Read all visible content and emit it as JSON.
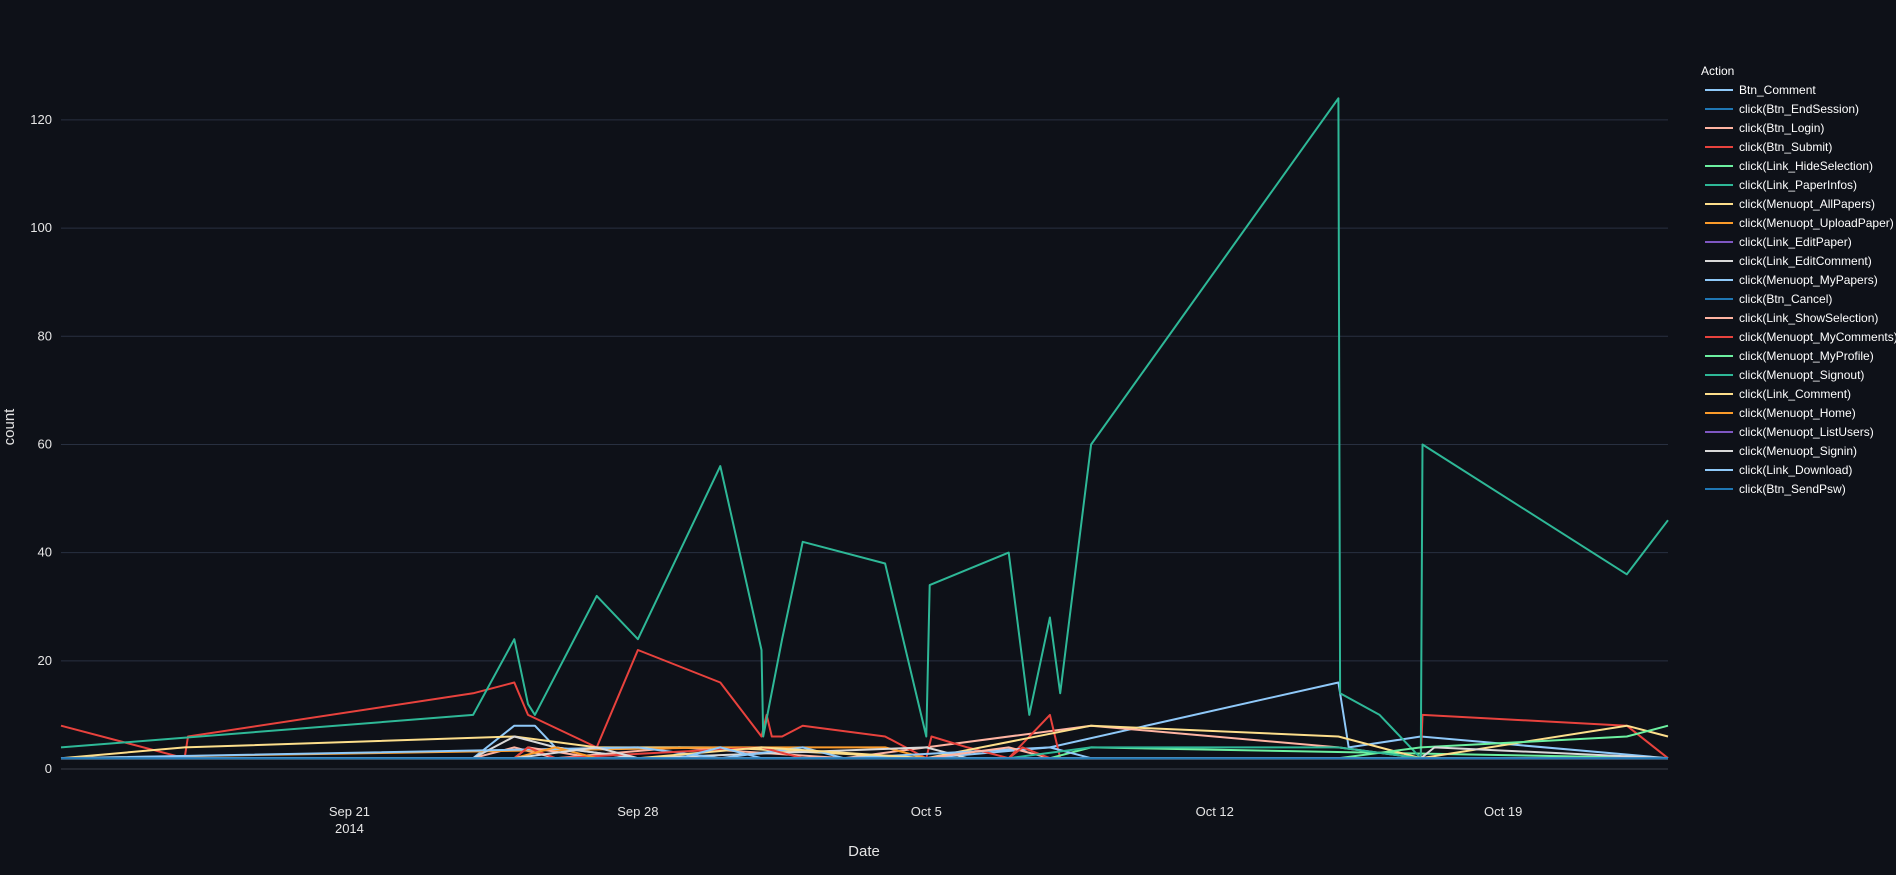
{
  "chart_data": {
    "type": "line",
    "xlabel": "Date",
    "ylabel": "count",
    "ylim": [
      0,
      132
    ],
    "xlim": [
      "2014-09-14",
      "2014-10-23"
    ],
    "grid": true,
    "legend": {
      "title": "Action",
      "placement": "right"
    },
    "x_ticks": [
      {
        "date": "2014-09-21",
        "label": "Sep 21",
        "sublabel": "2014"
      },
      {
        "date": "2014-09-28",
        "label": "Sep 28",
        "sublabel": ""
      },
      {
        "date": "2014-10-05",
        "label": "Oct 5",
        "sublabel": ""
      },
      {
        "date": "2014-10-12",
        "label": "Oct 12",
        "sublabel": ""
      },
      {
        "date": "2014-10-19",
        "label": "Oct 19",
        "sublabel": ""
      }
    ],
    "y_ticks": [
      0,
      20,
      40,
      60,
      80,
      100,
      120
    ],
    "series": [
      {
        "name": "Btn_Comment",
        "color": "#8fc9f9",
        "points": [
          [
            "2014-09-14",
            2
          ],
          [
            "2014-09-24",
            2
          ],
          [
            "2014-09-25",
            8
          ],
          [
            "2014-09-25T12:00",
            8
          ],
          [
            "2014-09-26",
            4
          ],
          [
            "2014-09-28",
            2
          ],
          [
            "2014-10-05",
            2
          ],
          [
            "2014-10-08",
            4
          ],
          [
            "2014-10-15",
            16
          ],
          [
            "2014-10-15T06:00",
            4
          ],
          [
            "2014-10-17",
            6
          ],
          [
            "2014-10-23",
            2
          ]
        ]
      },
      {
        "name": "click(Btn_EndSession)",
        "color": "#1f77b4",
        "points": [
          [
            "2014-09-14",
            2
          ],
          [
            "2014-10-23",
            2
          ]
        ]
      },
      {
        "name": "click(Btn_Login)",
        "color": "#ffb4a2",
        "points": [
          [
            "2014-09-14",
            2
          ],
          [
            "2014-09-24",
            2
          ],
          [
            "2014-09-25",
            4
          ],
          [
            "2014-09-26",
            2
          ],
          [
            "2014-09-29",
            4
          ],
          [
            "2014-10-03",
            2
          ],
          [
            "2014-10-09",
            8
          ],
          [
            "2014-10-15",
            4
          ],
          [
            "2014-10-17",
            2
          ],
          [
            "2014-10-23",
            2
          ]
        ]
      },
      {
        "name": "click(Btn_Submit)",
        "color": "#e8423d",
        "points": [
          [
            "2014-09-14",
            8
          ],
          [
            "2014-09-17",
            2
          ],
          [
            "2014-09-17T02:00",
            6
          ],
          [
            "2014-09-24",
            14
          ],
          [
            "2014-09-25",
            16
          ],
          [
            "2014-09-25T08:00",
            10
          ],
          [
            "2014-09-27",
            4
          ],
          [
            "2014-09-28",
            22
          ],
          [
            "2014-09-30",
            16
          ],
          [
            "2014-10-01",
            6
          ],
          [
            "2014-10-01T03:00",
            10
          ],
          [
            "2014-10-01T06:00",
            6
          ],
          [
            "2014-10-01T12:00",
            6
          ],
          [
            "2014-10-02",
            8
          ],
          [
            "2014-10-04",
            6
          ],
          [
            "2014-10-05",
            2
          ],
          [
            "2014-10-05T03:00",
            6
          ],
          [
            "2014-10-06",
            4
          ],
          [
            "2014-10-07",
            2
          ],
          [
            "2014-10-08",
            10
          ],
          [
            "2014-10-08T06:00",
            2
          ],
          [
            "2014-10-17",
            2
          ],
          [
            "2014-10-17T01:00",
            10
          ],
          [
            "2014-10-22",
            8
          ],
          [
            "2014-10-23",
            2
          ]
        ]
      },
      {
        "name": "click(Link_HideSelection)",
        "color": "#6cf0a0",
        "points": [
          [
            "2014-09-14",
            2
          ],
          [
            "2014-10-08",
            2
          ],
          [
            "2014-10-09",
            4
          ],
          [
            "2014-10-23",
            2
          ]
        ]
      },
      {
        "name": "click(Link_PaperInfos)",
        "color": "#2eb897",
        "points": [
          [
            "2014-09-14",
            4
          ],
          [
            "2014-09-24",
            10
          ],
          [
            "2014-09-25",
            24
          ],
          [
            "2014-09-25T08:00",
            12
          ],
          [
            "2014-09-25T12:00",
            10
          ],
          [
            "2014-09-27",
            32
          ],
          [
            "2014-09-28",
            24
          ],
          [
            "2014-09-30",
            56
          ],
          [
            "2014-10-01",
            22
          ],
          [
            "2014-10-01T01:00",
            6
          ],
          [
            "2014-10-01T12:00",
            24
          ],
          [
            "2014-10-02",
            42
          ],
          [
            "2014-10-04",
            38
          ],
          [
            "2014-10-05",
            6
          ],
          [
            "2014-10-05T02:00",
            34
          ],
          [
            "2014-10-07",
            40
          ],
          [
            "2014-10-07T12:00",
            10
          ],
          [
            "2014-10-08",
            28
          ],
          [
            "2014-10-08T06:00",
            14
          ],
          [
            "2014-10-09",
            60
          ],
          [
            "2014-10-15",
            124
          ],
          [
            "2014-10-15T01:00",
            14
          ],
          [
            "2014-10-16",
            10
          ],
          [
            "2014-10-17",
            2
          ],
          [
            "2014-10-17T01:00",
            60
          ],
          [
            "2014-10-22",
            36
          ],
          [
            "2014-10-23",
            46
          ]
        ]
      },
      {
        "name": "click(Menuopt_AllPapers)",
        "color": "#fdde8b",
        "points": [
          [
            "2014-09-14",
            2
          ],
          [
            "2014-09-17",
            4
          ],
          [
            "2014-09-25",
            6
          ],
          [
            "2014-09-27",
            4
          ],
          [
            "2014-09-30",
            4
          ],
          [
            "2014-10-05",
            2
          ],
          [
            "2014-10-09",
            8
          ],
          [
            "2014-10-15",
            6
          ],
          [
            "2014-10-17",
            2
          ],
          [
            "2014-10-22",
            8
          ],
          [
            "2014-10-23",
            6
          ]
        ]
      },
      {
        "name": "click(Menuopt_UploadPaper)",
        "color": "#fb9b2a",
        "points": [
          [
            "2014-09-14",
            2
          ],
          [
            "2014-09-30",
            4
          ],
          [
            "2014-10-04",
            4
          ],
          [
            "2014-10-05",
            2
          ],
          [
            "2014-10-23",
            2
          ]
        ]
      },
      {
        "name": "click(Link_EditPaper)",
        "color": "#7e57c2",
        "points": [
          [
            "2014-09-14",
            2
          ],
          [
            "2014-10-23",
            2
          ]
        ]
      },
      {
        "name": "click(Link_EditComment)",
        "color": "#d9d9d9",
        "points": [
          [
            "2014-09-14",
            2
          ],
          [
            "2014-09-24",
            2
          ],
          [
            "2014-09-25",
            6
          ],
          [
            "2014-09-26",
            4
          ],
          [
            "2014-09-28",
            2
          ],
          [
            "2014-10-05",
            4
          ],
          [
            "2014-10-06",
            2
          ],
          [
            "2014-10-17",
            2
          ],
          [
            "2014-10-23",
            2
          ]
        ]
      },
      {
        "name": "click(Menuopt_MyPapers)",
        "color": "#8fc9f9",
        "points": [
          [
            "2014-09-14",
            2
          ],
          [
            "2014-09-28",
            4
          ],
          [
            "2014-09-30",
            2
          ],
          [
            "2014-10-02",
            4
          ],
          [
            "2014-10-03",
            2
          ],
          [
            "2014-10-08",
            4
          ],
          [
            "2014-10-09",
            2
          ],
          [
            "2014-10-23",
            2
          ]
        ]
      },
      {
        "name": "click(Btn_Cancel)",
        "color": "#1f77b4",
        "points": [
          [
            "2014-09-14",
            2
          ],
          [
            "2014-10-23",
            2
          ]
        ]
      },
      {
        "name": "click(Link_ShowSelection)",
        "color": "#ffb4a2",
        "points": [
          [
            "2014-09-14",
            2
          ],
          [
            "2014-09-25",
            2
          ],
          [
            "2014-09-25T08:00",
            4
          ],
          [
            "2014-09-27",
            2
          ],
          [
            "2014-10-05",
            2
          ],
          [
            "2014-10-07",
            4
          ],
          [
            "2014-10-08",
            2
          ],
          [
            "2014-10-23",
            2
          ]
        ]
      },
      {
        "name": "click(Menuopt_MyComments)",
        "color": "#e8423d",
        "points": [
          [
            "2014-09-14",
            2
          ],
          [
            "2014-09-25",
            2
          ],
          [
            "2014-09-25T08:00",
            4
          ],
          [
            "2014-09-26",
            2
          ],
          [
            "2014-10-01",
            4
          ],
          [
            "2014-10-02",
            2
          ],
          [
            "2014-10-07",
            2
          ],
          [
            "2014-10-07T08:00",
            4
          ],
          [
            "2014-10-08",
            2
          ],
          [
            "2014-10-22",
            2
          ],
          [
            "2014-10-23",
            2
          ]
        ]
      },
      {
        "name": "click(Menuopt_MyProfile)",
        "color": "#6cf0a0",
        "points": [
          [
            "2014-09-14",
            2
          ],
          [
            "2014-09-29",
            2
          ],
          [
            "2014-10-05",
            2
          ],
          [
            "2014-10-15",
            2
          ],
          [
            "2014-10-17",
            4
          ],
          [
            "2014-10-22",
            6
          ],
          [
            "2014-10-23",
            8
          ]
        ]
      },
      {
        "name": "click(Menuopt_Signout)",
        "color": "#2eb897",
        "points": [
          [
            "2014-09-14",
            2
          ],
          [
            "2014-10-07",
            2
          ],
          [
            "2014-10-09",
            4
          ],
          [
            "2014-10-15",
            4
          ],
          [
            "2014-10-17",
            2
          ],
          [
            "2014-10-23",
            2
          ]
        ]
      },
      {
        "name": "click(Link_Comment)",
        "color": "#fdde8b",
        "points": [
          [
            "2014-09-14",
            2
          ],
          [
            "2014-09-28",
            2
          ],
          [
            "2014-10-01",
            4
          ],
          [
            "2014-10-05",
            2
          ],
          [
            "2014-10-23",
            2
          ]
        ]
      },
      {
        "name": "click(Menuopt_Home)",
        "color": "#fb9b2a",
        "points": [
          [
            "2014-09-14",
            2
          ],
          [
            "2014-09-25",
            2
          ],
          [
            "2014-09-26",
            4
          ],
          [
            "2014-09-27",
            2
          ],
          [
            "2014-10-01",
            2
          ],
          [
            "2014-10-23",
            2
          ]
        ]
      },
      {
        "name": "click(Menuopt_ListUsers)",
        "color": "#7e57c2",
        "points": [
          [
            "2014-09-14",
            2
          ],
          [
            "2014-10-23",
            2
          ]
        ]
      },
      {
        "name": "click(Menuopt_Signin)",
        "color": "#d9d9d9",
        "points": [
          [
            "2014-09-14",
            2
          ],
          [
            "2014-09-25",
            2
          ],
          [
            "2014-09-27",
            4
          ],
          [
            "2014-09-28",
            2
          ],
          [
            "2014-10-09",
            2
          ],
          [
            "2014-10-17",
            2
          ],
          [
            "2014-10-17T08:00",
            4
          ],
          [
            "2014-10-23",
            2
          ]
        ]
      },
      {
        "name": "click(Link_Download)",
        "color": "#8fc9f9",
        "points": [
          [
            "2014-09-14",
            2
          ],
          [
            "2014-09-29",
            2
          ],
          [
            "2014-09-30",
            4
          ],
          [
            "2014-10-01",
            2
          ],
          [
            "2014-10-23",
            2
          ]
        ]
      },
      {
        "name": "click(Btn_SendPsw)",
        "color": "#1f77b4",
        "points": [
          [
            "2014-09-14",
            2
          ],
          [
            "2014-10-23",
            2
          ]
        ]
      }
    ]
  }
}
